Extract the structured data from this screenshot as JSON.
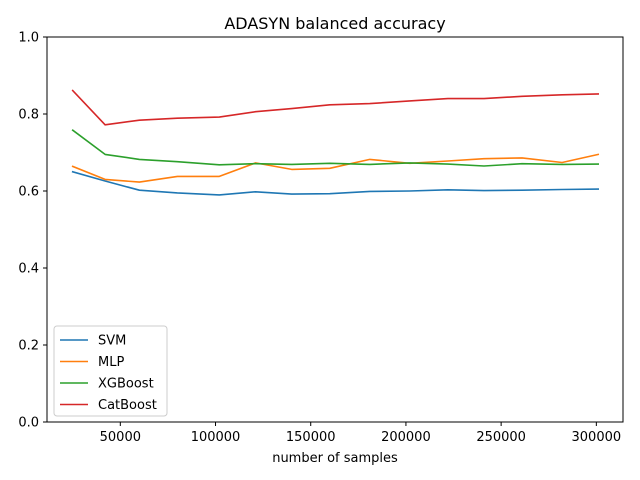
{
  "chart_data": {
    "type": "line",
    "title": "ADASYN balanced accuracy",
    "xlabel": "number of samples",
    "ylabel": "",
    "xlim": [
      11500,
      314000
    ],
    "ylim": [
      0.0,
      1.0
    ],
    "xticks": [
      50000,
      100000,
      150000,
      200000,
      250000,
      300000
    ],
    "yticks": [
      0.0,
      0.2,
      0.4,
      0.6,
      0.8,
      1.0
    ],
    "grid": false,
    "legend_position": "lower-left",
    "x": [
      25000,
      42000,
      60000,
      80000,
      102000,
      121000,
      140000,
      160000,
      181000,
      202000,
      222000,
      241000,
      261000,
      282000,
      301000
    ],
    "series": [
      {
        "name": "SVM",
        "color": "#1f77b4",
        "values": [
          0.65,
          0.626,
          0.602,
          0.595,
          0.59,
          0.598,
          0.592,
          0.593,
          0.599,
          0.6,
          0.603,
          0.601,
          0.602,
          0.604,
          0.605
        ]
      },
      {
        "name": "MLP",
        "color": "#ff7f0e",
        "values": [
          0.664,
          0.63,
          0.623,
          0.638,
          0.638,
          0.673,
          0.656,
          0.659,
          0.682,
          0.672,
          0.678,
          0.684,
          0.686,
          0.674,
          0.695
        ]
      },
      {
        "name": "XGBoost",
        "color": "#2ca02c",
        "values": [
          0.758,
          0.695,
          0.682,
          0.676,
          0.668,
          0.671,
          0.669,
          0.672,
          0.669,
          0.673,
          0.67,
          0.665,
          0.671,
          0.669,
          0.67
        ]
      },
      {
        "name": "CatBoost",
        "color": "#d62728",
        "values": [
          0.861,
          0.772,
          0.784,
          0.789,
          0.792,
          0.806,
          0.814,
          0.824,
          0.827,
          0.834,
          0.84,
          0.84,
          0.846,
          0.85,
          0.852
        ]
      }
    ]
  }
}
